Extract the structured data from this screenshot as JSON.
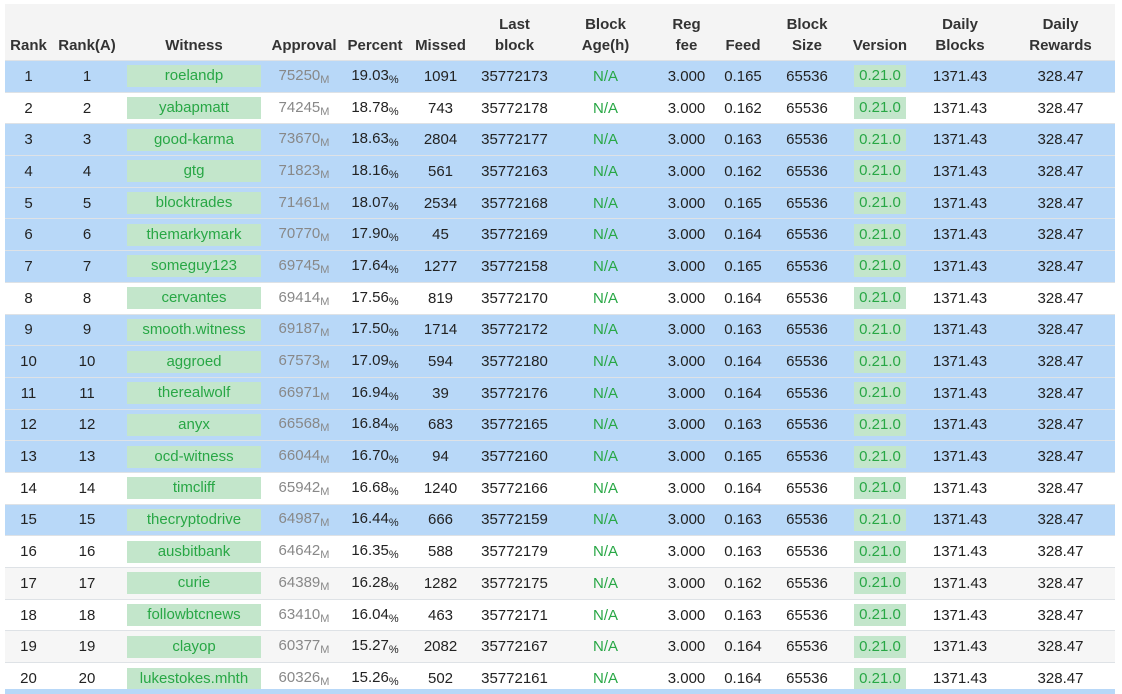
{
  "table": {
    "headers": [
      "Rank",
      "Rank(A)",
      "Witness",
      "Approval",
      "Percent",
      "Missed",
      "Last\nblock",
      "Block\nAge(h)",
      "Reg\nfee",
      "Feed",
      "Block\nSize",
      "Version",
      "Daily\nBlocks",
      "Daily\nRewards"
    ],
    "approval_unit": "M",
    "percent_unit": "%",
    "rows": [
      {
        "highlight": true,
        "cells": [
          "1",
          "1",
          "roelandp",
          "75250",
          "19.03",
          "1091",
          "35772173",
          "N/A",
          "3.000",
          "0.165",
          "65536",
          "0.21.0",
          "1371.43",
          "328.47"
        ]
      },
      {
        "highlight": false,
        "cells": [
          "2",
          "2",
          "yabapmatt",
          "74245",
          "18.78",
          "743",
          "35772178",
          "N/A",
          "3.000",
          "0.162",
          "65536",
          "0.21.0",
          "1371.43",
          "328.47"
        ]
      },
      {
        "highlight": true,
        "cells": [
          "3",
          "3",
          "good-karma",
          "73670",
          "18.63",
          "2804",
          "35772177",
          "N/A",
          "3.000",
          "0.163",
          "65536",
          "0.21.0",
          "1371.43",
          "328.47"
        ]
      },
      {
        "highlight": true,
        "cells": [
          "4",
          "4",
          "gtg",
          "71823",
          "18.16",
          "561",
          "35772163",
          "N/A",
          "3.000",
          "0.162",
          "65536",
          "0.21.0",
          "1371.43",
          "328.47"
        ]
      },
      {
        "highlight": true,
        "cells": [
          "5",
          "5",
          "blocktrades",
          "71461",
          "18.07",
          "2534",
          "35772168",
          "N/A",
          "3.000",
          "0.165",
          "65536",
          "0.21.0",
          "1371.43",
          "328.47"
        ]
      },
      {
        "highlight": true,
        "cells": [
          "6",
          "6",
          "themarkymark",
          "70770",
          "17.90",
          "45",
          "35772169",
          "N/A",
          "3.000",
          "0.164",
          "65536",
          "0.21.0",
          "1371.43",
          "328.47"
        ]
      },
      {
        "highlight": true,
        "cells": [
          "7",
          "7",
          "someguy123",
          "69745",
          "17.64",
          "1277",
          "35772158",
          "N/A",
          "3.000",
          "0.165",
          "65536",
          "0.21.0",
          "1371.43",
          "328.47"
        ]
      },
      {
        "highlight": false,
        "cells": [
          "8",
          "8",
          "cervantes",
          "69414",
          "17.56",
          "819",
          "35772170",
          "N/A",
          "3.000",
          "0.164",
          "65536",
          "0.21.0",
          "1371.43",
          "328.47"
        ]
      },
      {
        "highlight": true,
        "cells": [
          "9",
          "9",
          "smooth.witness",
          "69187",
          "17.50",
          "1714",
          "35772172",
          "N/A",
          "3.000",
          "0.163",
          "65536",
          "0.21.0",
          "1371.43",
          "328.47"
        ]
      },
      {
        "highlight": true,
        "cells": [
          "10",
          "10",
          "aggroed",
          "67573",
          "17.09",
          "594",
          "35772180",
          "N/A",
          "3.000",
          "0.164",
          "65536",
          "0.21.0",
          "1371.43",
          "328.47"
        ]
      },
      {
        "highlight": true,
        "cells": [
          "11",
          "11",
          "therealwolf",
          "66971",
          "16.94",
          "39",
          "35772176",
          "N/A",
          "3.000",
          "0.164",
          "65536",
          "0.21.0",
          "1371.43",
          "328.47"
        ]
      },
      {
        "highlight": true,
        "cells": [
          "12",
          "12",
          "anyx",
          "66568",
          "16.84",
          "683",
          "35772165",
          "N/A",
          "3.000",
          "0.163",
          "65536",
          "0.21.0",
          "1371.43",
          "328.47"
        ]
      },
      {
        "highlight": true,
        "cells": [
          "13",
          "13",
          "ocd-witness",
          "66044",
          "16.70",
          "94",
          "35772160",
          "N/A",
          "3.000",
          "0.165",
          "65536",
          "0.21.0",
          "1371.43",
          "328.47"
        ]
      },
      {
        "highlight": false,
        "cells": [
          "14",
          "14",
          "timcliff",
          "65942",
          "16.68",
          "1240",
          "35772166",
          "N/A",
          "3.000",
          "0.164",
          "65536",
          "0.21.0",
          "1371.43",
          "328.47"
        ]
      },
      {
        "highlight": true,
        "cells": [
          "15",
          "15",
          "thecryptodrive",
          "64987",
          "16.44",
          "666",
          "35772159",
          "N/A",
          "3.000",
          "0.163",
          "65536",
          "0.21.0",
          "1371.43",
          "328.47"
        ]
      },
      {
        "highlight": false,
        "cells": [
          "16",
          "16",
          "ausbitbank",
          "64642",
          "16.35",
          "588",
          "35772179",
          "N/A",
          "3.000",
          "0.163",
          "65536",
          "0.21.0",
          "1371.43",
          "328.47"
        ]
      },
      {
        "highlight": false,
        "cells": [
          "17",
          "17",
          "curie",
          "64389",
          "16.28",
          "1282",
          "35772175",
          "N/A",
          "3.000",
          "0.162",
          "65536",
          "0.21.0",
          "1371.43",
          "328.47"
        ]
      },
      {
        "highlight": false,
        "cells": [
          "18",
          "18",
          "followbtcnews",
          "63410",
          "16.04",
          "463",
          "35772171",
          "N/A",
          "3.000",
          "0.163",
          "65536",
          "0.21.0",
          "1371.43",
          "328.47"
        ]
      },
      {
        "highlight": false,
        "cells": [
          "19",
          "19",
          "clayop",
          "60377",
          "15.27",
          "2082",
          "35772167",
          "N/A",
          "3.000",
          "0.164",
          "65536",
          "0.21.0",
          "1371.43",
          "328.47"
        ]
      },
      {
        "highlight": false,
        "cells": [
          "20",
          "20",
          "lukestokes.mhth",
          "60326",
          "15.26",
          "502",
          "35772161",
          "N/A",
          "3.000",
          "0.164",
          "65536",
          "0.21.0",
          "1371.43",
          "328.47"
        ]
      }
    ]
  }
}
